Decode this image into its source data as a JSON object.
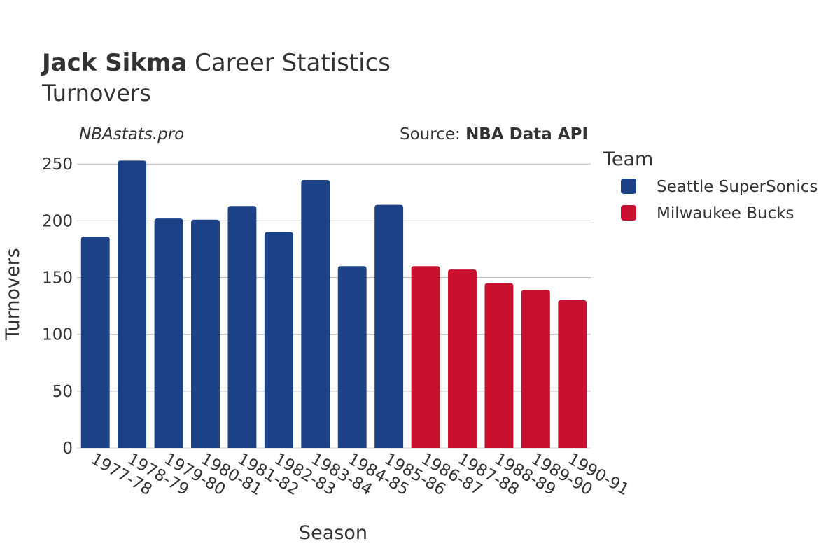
{
  "header": {
    "title_name": "Jack Sikma",
    "title_rest": " Career Statistics",
    "subtitle": "Turnovers",
    "watermark": "NBAstats.pro",
    "source_prefix": "Source: ",
    "source_name": "NBA Data API"
  },
  "legend": {
    "title": "Team",
    "placement": "right",
    "items": [
      {
        "name": "Seattle SuperSonics",
        "color": "#1C4186"
      },
      {
        "name": "Milwaukee Bucks",
        "color": "#C8102E"
      }
    ]
  },
  "chart_data": {
    "type": "bar",
    "title": "Jack Sikma Career Statistics",
    "subtitle": "Turnovers",
    "xlabel": "Season",
    "ylabel": "Turnovers",
    "ylim": [
      0,
      260
    ],
    "yticks": [
      0,
      50,
      100,
      150,
      200,
      250
    ],
    "grid": true,
    "categories": [
      "1977-78",
      "1978-79",
      "1979-80",
      "1980-81",
      "1981-82",
      "1982-83",
      "1983-84",
      "1984-85",
      "1985-86",
      "1986-87",
      "1987-88",
      "1988-89",
      "1989-90",
      "1990-91"
    ],
    "values": [
      186,
      253,
      202,
      201,
      213,
      190,
      236,
      160,
      214,
      160,
      157,
      145,
      139,
      130
    ],
    "teams": [
      "Seattle SuperSonics",
      "Seattle SuperSonics",
      "Seattle SuperSonics",
      "Seattle SuperSonics",
      "Seattle SuperSonics",
      "Seattle SuperSonics",
      "Seattle SuperSonics",
      "Seattle SuperSonics",
      "Seattle SuperSonics",
      "Milwaukee Bucks",
      "Milwaukee Bucks",
      "Milwaukee Bucks",
      "Milwaukee Bucks",
      "Milwaukee Bucks"
    ]
  }
}
